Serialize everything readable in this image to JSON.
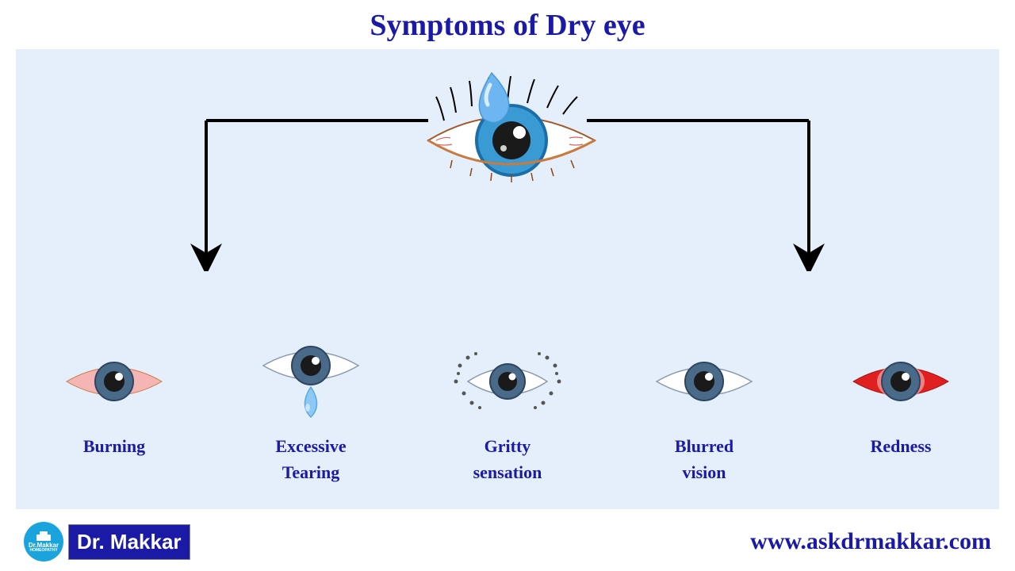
{
  "title": "Symptoms of Dry eye",
  "colors": {
    "title_color": "#1a1aa6",
    "panel_bg": "#e5effb",
    "connector": "#000000",
    "logo_circle_bg": "#1aa3dd",
    "logo_rect_bg": "#1a1aa6",
    "logo_text_color": "#ffffff"
  },
  "main_eye": {
    "iris_color": "#3a9bd4",
    "iris_inner": "#1c6ea8",
    "pupil": "#1a1a1a",
    "highlight": "#ffffff",
    "sclera": "#ffffff",
    "outline": "#8b4513",
    "lash_color": "#000000",
    "tear_fill": "#6db6f2",
    "tear_highlight": "#d8edfe"
  },
  "connector_lines": {
    "stroke_width": 4,
    "arrow_size": 12
  },
  "symptoms": [
    {
      "key": "burning",
      "label": "Burning",
      "sclera_fill": "#f5b5b5",
      "iris": "#4a6a8a",
      "extra": "none"
    },
    {
      "key": "tearing",
      "label": "Excessive\nTearing",
      "sclera_fill": "#ffffff",
      "iris": "#4a6a8a",
      "extra": "tear"
    },
    {
      "key": "gritty",
      "label": "Gritty\nsensation",
      "sclera_fill": "#ffffff",
      "iris": "#4a6a8a",
      "extra": "grit"
    },
    {
      "key": "blurred",
      "label": "Blurred\nvision",
      "sclera_fill": "#ffffff",
      "iris": "#4a6a8a",
      "extra": "none"
    },
    {
      "key": "redness",
      "label": "Redness",
      "sclera_fill": "#e02020",
      "iris": "#4a6a8a",
      "extra": "none"
    }
  ],
  "logo": {
    "circle_top": "Dr.Makkar",
    "circle_bottom": "HOMEOPATHY",
    "rect_text": "Dr. Makkar"
  },
  "website": "www.askdrmakkar.com"
}
